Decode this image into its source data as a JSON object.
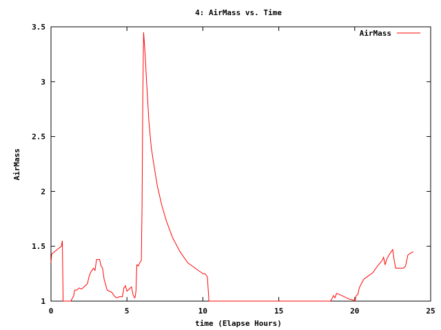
{
  "chart_data": {
    "type": "line",
    "title": "4: AirMass vs. Time",
    "xlabel": "time (Elapse Hours)",
    "ylabel": "AirMass",
    "xlim": [
      0,
      25
    ],
    "ylim": [
      1,
      3.5
    ],
    "xticks": [
      0,
      5,
      10,
      15,
      20,
      25
    ],
    "yticks": [
      1,
      1.5,
      2,
      2.5,
      3,
      3.5
    ],
    "xtick_labels": [
      "0",
      "5",
      "10",
      "15",
      "20",
      "25"
    ],
    "ytick_labels": [
      "1",
      "1.5",
      "2",
      "2.5",
      "3",
      "3.5"
    ],
    "grid": false,
    "legend": "top-right",
    "line_color": "#ff0000",
    "series": [
      {
        "name": "AirMass",
        "x": [
          0.0,
          0.05,
          0.5,
          0.68,
          0.75,
          0.8,
          1.3,
          1.5,
          1.55,
          1.7,
          1.85,
          2.0,
          2.1,
          2.25,
          2.4,
          2.5,
          2.6,
          2.7,
          2.8,
          2.9,
          3.0,
          3.1,
          3.2,
          3.3,
          3.4,
          3.5,
          3.6,
          3.7,
          3.85,
          4.0,
          4.15,
          4.3,
          4.5,
          4.7,
          4.8,
          4.9,
          5.0,
          5.15,
          5.3,
          5.4,
          5.5,
          5.55,
          5.6,
          5.65,
          5.7,
          5.75,
          5.85,
          5.95,
          6.0,
          6.05,
          6.1,
          6.15,
          6.2,
          6.3,
          6.45,
          6.6,
          6.8,
          7.0,
          7.3,
          7.6,
          8.0,
          8.5,
          9.0,
          9.5,
          9.9,
          10.0,
          10.15,
          10.3,
          10.4,
          18.4,
          18.5,
          18.6,
          18.7,
          18.8,
          19.0,
          19.3,
          19.6,
          19.9,
          20.0,
          20.05,
          20.1,
          20.2,
          20.3,
          20.4,
          20.6,
          20.9,
          21.2,
          21.5,
          21.8,
          21.9,
          22.0,
          22.1,
          22.25,
          22.4,
          22.5,
          22.6,
          22.7,
          23.0,
          23.2,
          23.35,
          23.5,
          23.7,
          23.85
        ],
        "y": [
          1.35,
          1.43,
          1.48,
          1.5,
          1.55,
          1.0,
          1.0,
          1.05,
          1.1,
          1.1,
          1.12,
          1.11,
          1.12,
          1.14,
          1.16,
          1.22,
          1.26,
          1.28,
          1.3,
          1.28,
          1.38,
          1.38,
          1.38,
          1.32,
          1.3,
          1.2,
          1.15,
          1.1,
          1.09,
          1.08,
          1.05,
          1.03,
          1.04,
          1.04,
          1.12,
          1.14,
          1.09,
          1.11,
          1.13,
          1.06,
          1.03,
          1.04,
          1.1,
          1.33,
          1.33,
          1.32,
          1.35,
          1.37,
          1.9,
          2.9,
          3.45,
          3.35,
          3.25,
          2.98,
          2.63,
          2.4,
          2.22,
          2.05,
          1.87,
          1.73,
          1.58,
          1.45,
          1.35,
          1.3,
          1.26,
          1.25,
          1.25,
          1.22,
          1.0,
          1.0,
          1.02,
          1.05,
          1.03,
          1.07,
          1.06,
          1.04,
          1.02,
          1.01,
          1.0,
          1.02,
          1.05,
          1.06,
          1.12,
          1.15,
          1.2,
          1.23,
          1.26,
          1.32,
          1.37,
          1.4,
          1.33,
          1.38,
          1.42,
          1.45,
          1.47,
          1.37,
          1.3,
          1.3,
          1.3,
          1.32,
          1.42,
          1.44,
          1.45
        ]
      }
    ]
  }
}
